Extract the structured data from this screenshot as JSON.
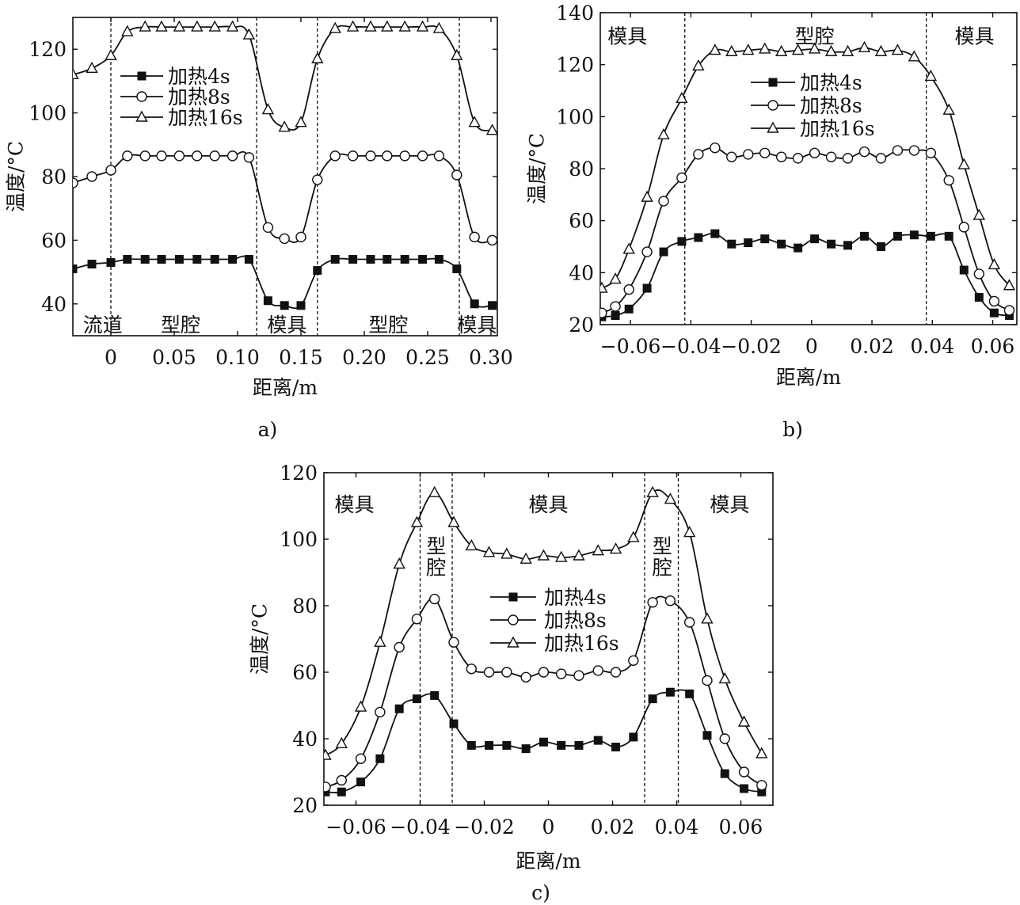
{
  "figure": {
    "colors": {
      "ink": "#111111",
      "background": "#ffffff"
    },
    "series_names": [
      "加热4s",
      "加热8s",
      "加热16s"
    ],
    "markers": [
      "filled-square",
      "open-circle",
      "open-triangle"
    ]
  },
  "chart_data": [
    {
      "id": "a",
      "type": "line",
      "caption": "a)",
      "xlabel": "距离/m",
      "ylabel": "温度/°C",
      "xlim": [
        -0.03,
        0.305
      ],
      "ylim": [
        30,
        130
      ],
      "xticks": [
        0,
        0.05,
        0.1,
        0.15,
        0.2,
        0.25,
        0.3
      ],
      "xtick_labels": [
        "0",
        "0.05",
        "0.10",
        "0.15",
        "0.20",
        "0.25",
        "0.30"
      ],
      "yticks": [
        40,
        60,
        80,
        100,
        120
      ],
      "ytick_labels": [
        "40",
        "60",
        "80",
        "100",
        "120"
      ],
      "boundaries": [
        0,
        0.115,
        0.163,
        0.275
      ],
      "legend_position": "upper-left",
      "region_labels": [
        {
          "text": "流道",
          "x": -0.022,
          "y": 33.5,
          "anchor": "start"
        },
        {
          "text": "型腔",
          "x": 0.055,
          "y": 33.5,
          "anchor": "middle"
        },
        {
          "text": "模具",
          "x": 0.139,
          "y": 33.5,
          "anchor": "middle"
        },
        {
          "text": "型腔",
          "x": 0.219,
          "y": 33.5,
          "anchor": "middle"
        },
        {
          "text": "模具",
          "x": 0.289,
          "y": 33.5,
          "anchor": "middle"
        }
      ],
      "series": [
        {
          "name": "加热4s",
          "x": [
            -0.03,
            -0.015,
            0,
            0.013,
            0.027,
            0.04,
            0.054,
            0.068,
            0.082,
            0.096,
            0.109,
            0.124,
            0.137,
            0.15,
            0.163,
            0.177,
            0.191,
            0.205,
            0.218,
            0.232,
            0.246,
            0.259,
            0.273,
            0.287,
            0.301
          ],
          "values": [
            51,
            52.5,
            53,
            54,
            54,
            54,
            54,
            54,
            54,
            54,
            54,
            41,
            39.5,
            39.5,
            50.5,
            54,
            54,
            54,
            54,
            54,
            54,
            54,
            51,
            40,
            39.5
          ]
        },
        {
          "name": "加热8s",
          "x": [
            -0.03,
            -0.015,
            0,
            0.013,
            0.027,
            0.04,
            0.054,
            0.068,
            0.082,
            0.096,
            0.109,
            0.124,
            0.137,
            0.15,
            0.163,
            0.177,
            0.191,
            0.205,
            0.218,
            0.232,
            0.246,
            0.259,
            0.273,
            0.287,
            0.301
          ],
          "values": [
            78,
            80,
            82,
            86.5,
            86.5,
            86.5,
            86.5,
            86.5,
            86.5,
            86.5,
            86,
            64,
            60.5,
            61,
            79,
            86.5,
            86.5,
            86.5,
            86.5,
            86.5,
            86.5,
            86.5,
            80.5,
            61,
            60
          ]
        },
        {
          "name": "加热16s",
          "x": [
            -0.03,
            -0.015,
            0,
            0.013,
            0.027,
            0.04,
            0.054,
            0.068,
            0.082,
            0.096,
            0.109,
            0.124,
            0.137,
            0.15,
            0.163,
            0.177,
            0.191,
            0.205,
            0.218,
            0.232,
            0.246,
            0.259,
            0.273,
            0.287,
            0.301
          ],
          "values": [
            112,
            114,
            118,
            125.5,
            127,
            127,
            127,
            127,
            127,
            127,
            124.5,
            101,
            95.5,
            97,
            117,
            126.5,
            127,
            127,
            127,
            127,
            127,
            126.5,
            118,
            97,
            94.5
          ]
        }
      ]
    },
    {
      "id": "b",
      "type": "line",
      "caption": "b)",
      "xlabel": "距离/m",
      "ylabel": "温度/°C",
      "xlim": [
        -0.07,
        0.068
      ],
      "ylim": [
        20,
        140
      ],
      "xticks": [
        -0.06,
        -0.04,
        -0.02,
        0,
        0.02,
        0.04,
        0.06
      ],
      "xtick_labels": [
        "−0.06",
        "−0.04",
        "−0.02",
        "0",
        "0.02",
        "0.04",
        "0.06"
      ],
      "yticks": [
        20,
        40,
        60,
        80,
        100,
        120,
        140
      ],
      "ytick_labels": [
        "20",
        "40",
        "60",
        "80",
        "100",
        "120",
        "140"
      ],
      "boundaries": [
        -0.042,
        0.038
      ],
      "legend_position": "center",
      "region_labels": [
        {
          "text": "模具",
          "x": -0.061,
          "y": 131,
          "anchor": "middle"
        },
        {
          "text": "型腔",
          "x": 0.001,
          "y": 131,
          "anchor": "middle"
        },
        {
          "text": "模具",
          "x": 0.054,
          "y": 131,
          "anchor": "middle"
        }
      ],
      "series": [
        {
          "name": "加热4s",
          "x": [
            -0.0695,
            -0.065,
            -0.0605,
            -0.0545,
            -0.049,
            -0.043,
            -0.0375,
            -0.032,
            -0.0265,
            -0.021,
            -0.0155,
            -0.01,
            -0.0045,
            0.001,
            0.0065,
            0.012,
            0.0175,
            0.023,
            0.0285,
            0.034,
            0.0395,
            0.0455,
            0.0505,
            0.0555,
            0.0605,
            0.0655
          ],
          "values": [
            23,
            23.5,
            26,
            34,
            48,
            52,
            53.5,
            55,
            51,
            51.5,
            53,
            51,
            49.5,
            53,
            51,
            50.5,
            54,
            50,
            54,
            54.5,
            54,
            54,
            41,
            30.5,
            24.5,
            23.5
          ]
        },
        {
          "name": "加热8s",
          "x": [
            -0.0695,
            -0.065,
            -0.0605,
            -0.0545,
            -0.049,
            -0.043,
            -0.0375,
            -0.032,
            -0.0265,
            -0.021,
            -0.0155,
            -0.01,
            -0.0045,
            0.001,
            0.0065,
            0.012,
            0.0175,
            0.023,
            0.0285,
            0.034,
            0.0395,
            0.0455,
            0.0505,
            0.0555,
            0.0605,
            0.0655
          ],
          "values": [
            24.5,
            27,
            33.5,
            48,
            67.5,
            76.5,
            85.5,
            88,
            84.5,
            85.5,
            86,
            84.5,
            84,
            86,
            84.5,
            84,
            86.5,
            84,
            87,
            87,
            86,
            75.5,
            57.5,
            39.5,
            29,
            25.5
          ]
        },
        {
          "name": "加热16s",
          "x": [
            -0.0695,
            -0.065,
            -0.0605,
            -0.0545,
            -0.049,
            -0.043,
            -0.0375,
            -0.032,
            -0.0265,
            -0.021,
            -0.0155,
            -0.01,
            -0.0045,
            0.001,
            0.0065,
            0.012,
            0.0175,
            0.023,
            0.0285,
            0.034,
            0.0395,
            0.0455,
            0.0505,
            0.0555,
            0.0605,
            0.0655
          ],
          "values": [
            34,
            37.5,
            49,
            69,
            93,
            107,
            119.5,
            125.5,
            125,
            125.5,
            126,
            125,
            125.5,
            126,
            125,
            125,
            126.5,
            125,
            125.5,
            123,
            115.5,
            102.5,
            81.5,
            62,
            43,
            35
          ]
        }
      ]
    },
    {
      "id": "c",
      "type": "line",
      "caption": "c)",
      "xlabel": "距离/m",
      "ylabel": "温度/°C",
      "xlim": [
        -0.07,
        0.07
      ],
      "ylim": [
        20,
        120
      ],
      "xticks": [
        -0.06,
        -0.04,
        -0.02,
        0,
        0.02,
        0.04,
        0.06
      ],
      "xtick_labels": [
        "−0.06",
        "−0.04",
        "−0.02",
        "0",
        "0.02",
        "0.04",
        "0.06"
      ],
      "yticks": [
        20,
        40,
        60,
        80,
        100,
        120
      ],
      "ytick_labels": [
        "20",
        "40",
        "60",
        "80",
        "100",
        "120"
      ],
      "boundaries": [
        -0.04,
        -0.03,
        0.03,
        0.0405
      ],
      "legend_position": "center",
      "region_labels": [
        {
          "text": "模具",
          "x": -0.0605,
          "y": 110.5,
          "anchor": "middle"
        },
        {
          "text": "模具",
          "x": 0,
          "y": 110.5,
          "anchor": "middle"
        },
        {
          "text": "模具",
          "x": 0.0565,
          "y": 110.5,
          "anchor": "middle"
        },
        {
          "text": "型",
          "x": -0.035,
          "y": 98,
          "anchor": "middle"
        },
        {
          "text": "腔",
          "x": -0.035,
          "y": 91.5,
          "anchor": "middle"
        },
        {
          "text": "型",
          "x": 0.0355,
          "y": 98,
          "anchor": "middle"
        },
        {
          "text": "腔",
          "x": 0.0355,
          "y": 91.5,
          "anchor": "middle"
        }
      ],
      "series": [
        {
          "name": "加热4s",
          "x": [
            -0.0695,
            -0.0645,
            -0.0585,
            -0.0525,
            -0.0465,
            -0.041,
            -0.0355,
            -0.0295,
            -0.024,
            -0.0185,
            -0.013,
            -0.007,
            -0.0015,
            0.004,
            0.0095,
            0.0155,
            0.021,
            0.0265,
            0.0325,
            0.038,
            0.044,
            0.0495,
            0.055,
            0.061,
            0.0665
          ],
          "values": [
            24,
            24,
            27,
            34,
            49,
            52,
            53,
            44.5,
            38,
            38,
            38,
            37,
            39,
            38,
            38,
            39.5,
            37.5,
            40.5,
            52,
            54,
            53.5,
            41,
            29.5,
            25,
            24
          ]
        },
        {
          "name": "加热8s",
          "x": [
            -0.0695,
            -0.0645,
            -0.0585,
            -0.0525,
            -0.0465,
            -0.041,
            -0.0355,
            -0.0295,
            -0.024,
            -0.0185,
            -0.013,
            -0.007,
            -0.0015,
            0.004,
            0.0095,
            0.0155,
            0.021,
            0.0265,
            0.0325,
            0.038,
            0.044,
            0.0495,
            0.055,
            0.061,
            0.0665
          ],
          "values": [
            25.5,
            27.5,
            34,
            48,
            67.5,
            76,
            82,
            69,
            61,
            60,
            60,
            58.5,
            60,
            59.5,
            59,
            60.5,
            60,
            63.5,
            81,
            81.5,
            75,
            57.5,
            40,
            30,
            26
          ]
        },
        {
          "name": "加热16s",
          "x": [
            -0.0695,
            -0.0645,
            -0.0585,
            -0.0525,
            -0.0465,
            -0.041,
            -0.0355,
            -0.0295,
            -0.024,
            -0.0185,
            -0.013,
            -0.007,
            -0.0015,
            0.004,
            0.0095,
            0.0155,
            0.021,
            0.0265,
            0.0325,
            0.038,
            0.044,
            0.0495,
            0.055,
            0.061,
            0.0665
          ],
          "values": [
            35,
            38.5,
            49.5,
            69,
            92.5,
            105,
            114,
            105,
            98,
            96,
            95.5,
            94,
            95,
            94.5,
            95,
            96.5,
            97,
            100.5,
            114,
            112,
            102,
            76,
            58,
            45,
            35.5
          ]
        }
      ]
    }
  ]
}
